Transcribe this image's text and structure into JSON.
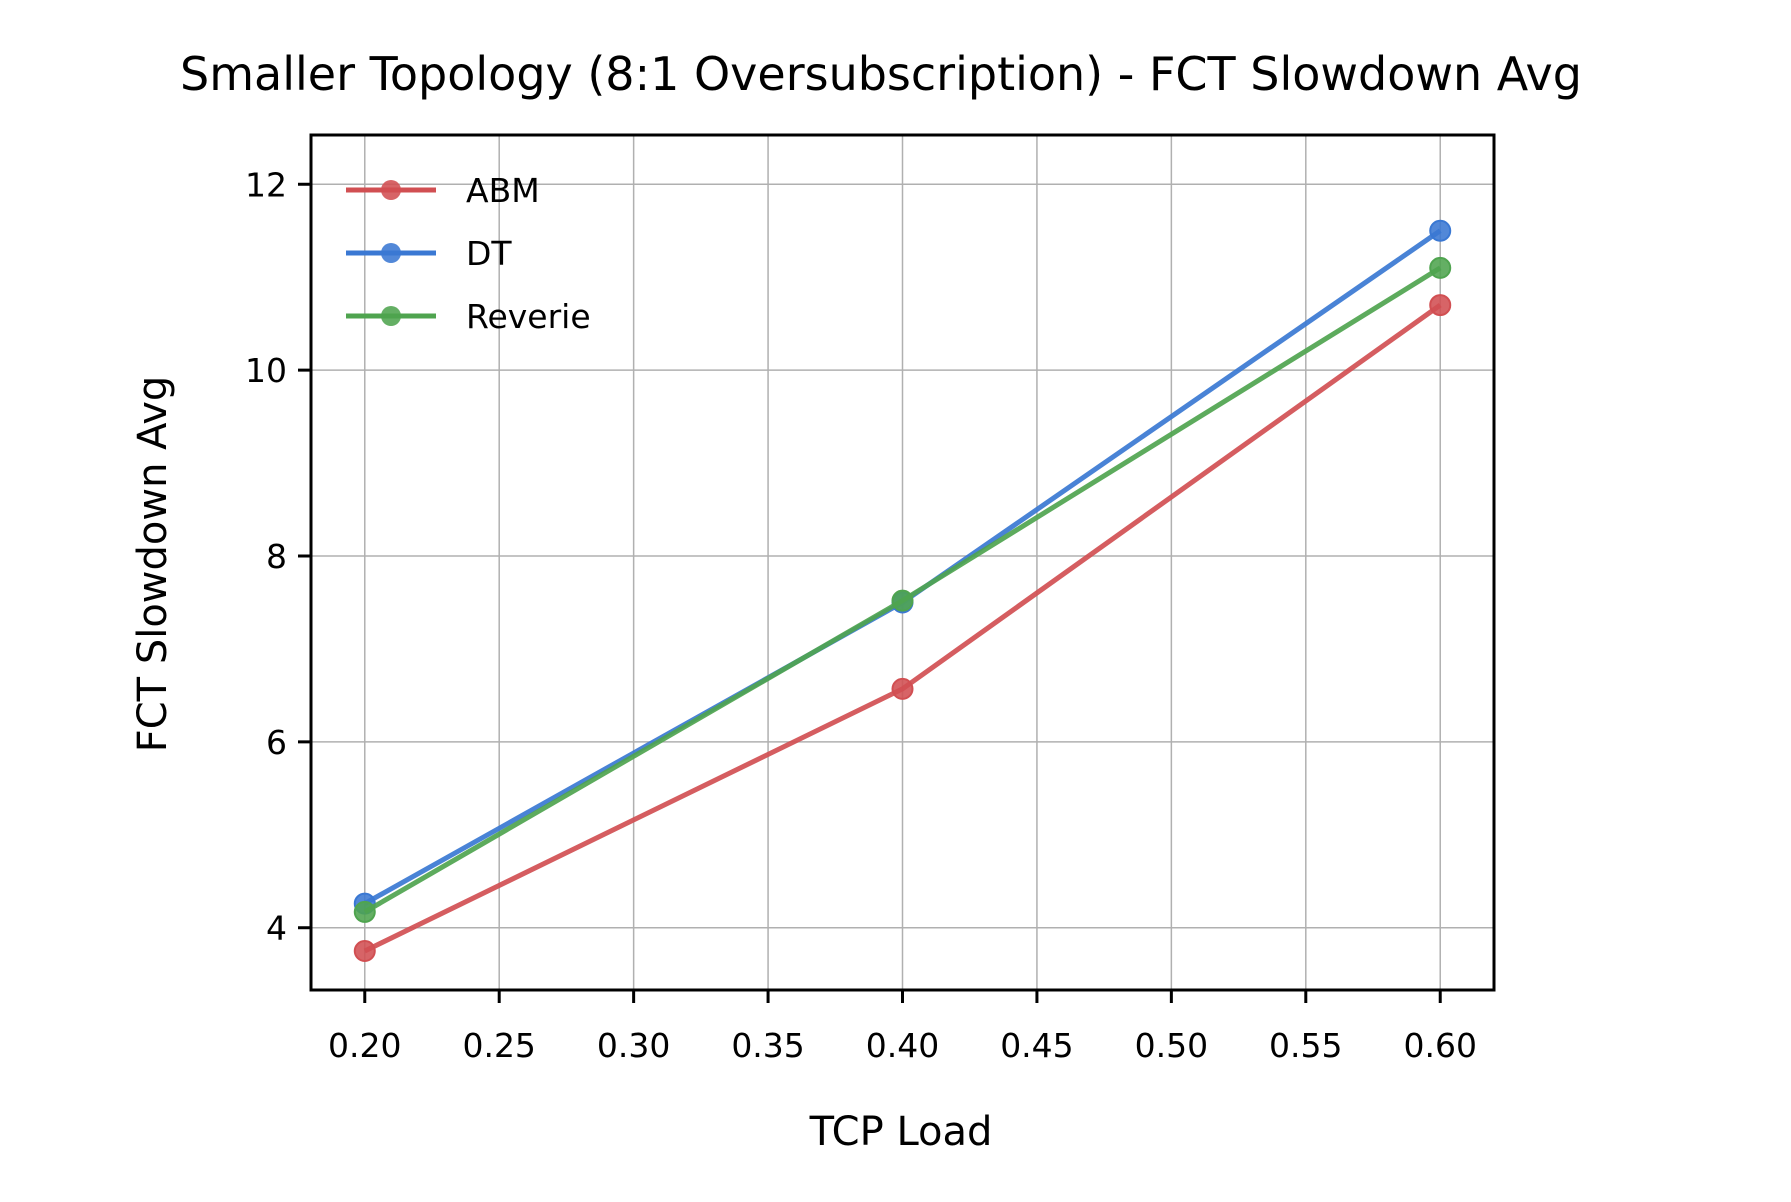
{
  "chart_data": {
    "type": "line",
    "title": "Smaller Topology (8:1 Oversubscription) - FCT Slowdown Avg",
    "xlabel": "TCP Load",
    "ylabel": "FCT Slowdown Avg",
    "xlim": [
      0.18,
      0.62
    ],
    "ylim": [
      3.33,
      12.53
    ],
    "xticks": [
      0.2,
      0.25,
      0.3,
      0.35,
      0.4,
      0.45,
      0.5,
      0.55,
      0.6
    ],
    "xtick_labels": [
      "0.20",
      "0.25",
      "0.30",
      "0.35",
      "0.40",
      "0.45",
      "0.50",
      "0.55",
      "0.60"
    ],
    "yticks": [
      4,
      6,
      8,
      10,
      12
    ],
    "ytick_labels": [
      "4",
      "6",
      "8",
      "10",
      "12"
    ],
    "grid": true,
    "legend_position": "top-left",
    "x": [
      0.2,
      0.4,
      0.6
    ],
    "series": [
      {
        "name": "ABM",
        "color": "#d14f52",
        "values": [
          3.75,
          6.57,
          10.7
        ]
      },
      {
        "name": "DT",
        "color": "#3a78d3",
        "values": [
          4.26,
          7.5,
          11.5
        ]
      },
      {
        "name": "Reverie",
        "color": "#4fa44f",
        "values": [
          4.17,
          7.52,
          11.1
        ]
      }
    ]
  }
}
